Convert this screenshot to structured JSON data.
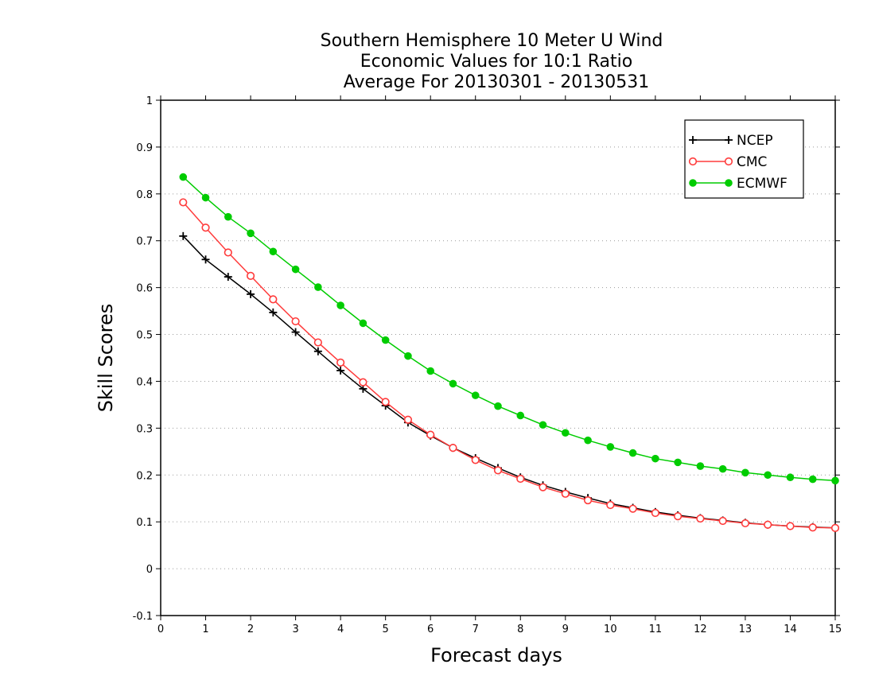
{
  "chart_data": {
    "type": "line",
    "title_lines": [
      "Southern Hemisphere 10 Meter U Wind",
      "Economic Values for 10:1 Ratio",
      "Average For 20130301 - 20130531"
    ],
    "xlabel": "Forecast days",
    "ylabel": "Skill Scores",
    "xlim": [
      0,
      15
    ],
    "ylim": [
      -0.1,
      1
    ],
    "xticks": [
      0,
      1,
      2,
      3,
      4,
      5,
      6,
      7,
      8,
      9,
      10,
      11,
      12,
      13,
      14,
      15
    ],
    "yticks": [
      -0.1,
      0,
      0.1,
      0.2,
      0.3,
      0.4,
      0.5,
      0.6,
      0.7,
      0.8,
      0.9,
      1
    ],
    "ytick_labels": [
      "-0.1",
      "0",
      "0.1",
      "0.2",
      "0.3",
      "0.4",
      "0.5",
      "0.6",
      "0.7",
      "0.8",
      "0.9",
      "1"
    ],
    "grid": "horizontal dotted",
    "legend_position": "top-right",
    "x": [
      0.5,
      1,
      1.5,
      2,
      2.5,
      3,
      3.5,
      4,
      4.5,
      5,
      5.5,
      6,
      6.5,
      7,
      7.5,
      8,
      8.5,
      9,
      9.5,
      10,
      10.5,
      11,
      11.5,
      12,
      12.5,
      13,
      13.5,
      14,
      14.5,
      15
    ],
    "series": [
      {
        "name": "NCEP",
        "color": "#000000",
        "marker": "plus",
        "values": [
          0.71,
          0.66,
          0.623,
          0.586,
          0.547,
          0.505,
          0.464,
          0.423,
          0.384,
          0.348,
          0.312,
          0.284,
          0.258,
          0.236,
          0.215,
          0.195,
          0.178,
          0.164,
          0.151,
          0.139,
          0.13,
          0.121,
          0.114,
          0.108,
          0.103,
          0.098,
          0.094,
          0.091,
          0.089,
          0.087
        ]
      },
      {
        "name": "CMC",
        "color": "#ff3b3b",
        "marker": "open-circle",
        "values": [
          0.782,
          0.728,
          0.675,
          0.625,
          0.575,
          0.528,
          0.483,
          0.44,
          0.398,
          0.356,
          0.318,
          0.286,
          0.258,
          0.232,
          0.21,
          0.192,
          0.174,
          0.16,
          0.146,
          0.136,
          0.128,
          0.119,
          0.112,
          0.107,
          0.102,
          0.097,
          0.094,
          0.091,
          0.088,
          0.087
        ]
      },
      {
        "name": "ECMWF",
        "color": "#00cc00",
        "marker": "filled-circle",
        "values": [
          0.836,
          0.792,
          0.751,
          0.716,
          0.677,
          0.639,
          0.601,
          0.562,
          0.524,
          0.488,
          0.454,
          0.422,
          0.395,
          0.37,
          0.347,
          0.327,
          0.307,
          0.29,
          0.274,
          0.26,
          0.247,
          0.235,
          0.227,
          0.219,
          0.213,
          0.205,
          0.2,
          0.195,
          0.191,
          0.188
        ]
      }
    ]
  }
}
